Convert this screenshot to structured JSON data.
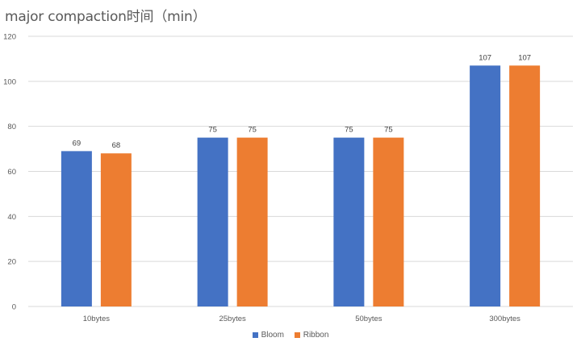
{
  "chart_data": {
    "type": "bar",
    "title": "major compaction时间（min）",
    "xlabel": "",
    "ylabel": "",
    "categories": [
      "10bytes",
      "25bytes",
      "50bytes",
      "300bytes"
    ],
    "series": [
      {
        "name": "Bloom",
        "color": "#4472C4",
        "values": [
          69,
          75,
          75,
          107
        ]
      },
      {
        "name": "Ribbon",
        "color": "#ED7D31",
        "values": [
          68,
          75,
          75,
          107
        ]
      }
    ],
    "ylim": [
      0,
      120
    ],
    "yticks": [
      0,
      20,
      40,
      60,
      80,
      100,
      120
    ],
    "grid": true,
    "data_labels": true,
    "legend_position": "bottom"
  },
  "legend": {
    "items": [
      {
        "label": "Bloom",
        "color": "#4472C4"
      },
      {
        "label": "Ribbon",
        "color": "#ED7D31"
      }
    ]
  }
}
